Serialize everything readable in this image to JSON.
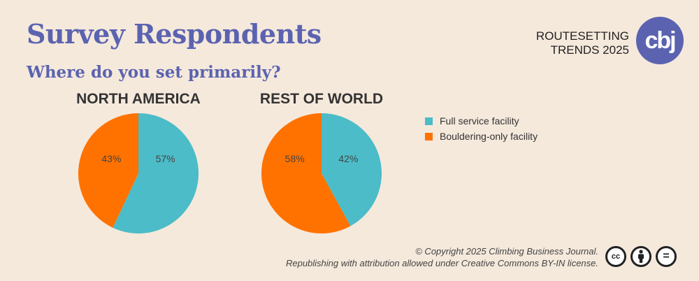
{
  "header": {
    "title": "Survey Respondents",
    "subtitle": "Where do you set primarily?",
    "brand_line1": "ROUTESETTING",
    "brand_line2": "TRENDS 2025",
    "logo_text": "cbj"
  },
  "chart_data": [
    {
      "type": "pie",
      "title": "NORTH AMERICA",
      "labels": [
        "Full service facility",
        "Bouldering-only facility"
      ],
      "values": [
        57,
        43
      ],
      "value_labels": [
        "57%",
        "43%"
      ],
      "colors": [
        "#4bbcc8",
        "#ff7200"
      ]
    },
    {
      "type": "pie",
      "title": "REST OF WORLD",
      "labels": [
        "Full service facility",
        "Bouldering-only facility"
      ],
      "values": [
        42,
        58
      ],
      "value_labels": [
        "42%",
        "58%"
      ],
      "colors": [
        "#4bbcc8",
        "#ff7200"
      ]
    }
  ],
  "legend": {
    "placement": "right",
    "items": [
      {
        "label": "Full service facility",
        "color": "#4bbcc8"
      },
      {
        "label": "Bouldering-only facility",
        "color": "#ff7200"
      }
    ]
  },
  "footer": {
    "line1": "© Copyright 2025 Climbing Business Journal.",
    "line2": "Republishing with attribution allowed under Creative Commons BY-IN license.",
    "icons": [
      "cc-icon",
      "attribution-icon",
      "equals-icon"
    ],
    "cc_text": "cc",
    "eq_text": "="
  }
}
